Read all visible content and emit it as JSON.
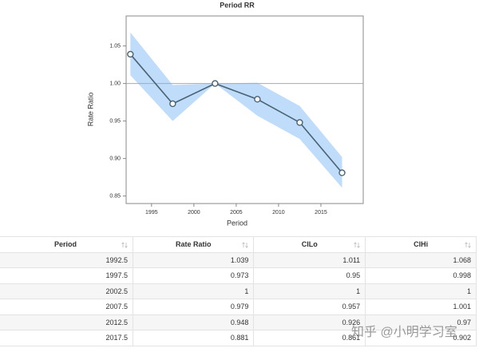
{
  "chart_data": {
    "type": "line",
    "title": "Period RR",
    "x_label": "Period",
    "y_label": "Rate Ratio",
    "x": [
      1992.5,
      1997.5,
      2002.5,
      2007.5,
      2012.5,
      2017.5
    ],
    "series": [
      {
        "name": "Rate Ratio",
        "color": "#4a6272",
        "values": [
          1.039,
          0.973,
          1,
          0.979,
          0.948,
          0.881
        ]
      }
    ],
    "band": {
      "color": "#bfdcfa",
      "lower": [
        1.011,
        0.95,
        1,
        0.957,
        0.926,
        0.861
      ],
      "upper": [
        1.068,
        0.998,
        1,
        1.001,
        0.97,
        0.902
      ]
    },
    "reference_line": 1,
    "xlim": [
      1992,
      2020
    ],
    "xticks": [
      1995,
      2000,
      2005,
      2010,
      2015
    ],
    "ylim": [
      0.84,
      1.09
    ],
    "yticks": [
      {
        "value": 0.85,
        "label": "0.85"
      },
      {
        "value": 0.9,
        "label": "0.90"
      },
      {
        "value": 0.95,
        "label": "0.95"
      },
      {
        "value": 1,
        "label": "1.00"
      },
      {
        "value": 1.05,
        "label": "1.05"
      }
    ],
    "grid": false
  },
  "table": {
    "columns": [
      "Period",
      "Rate Ratio",
      "CILo",
      "CIHi"
    ],
    "rows": [
      [
        1992.5,
        1.039,
        1.011,
        1.068
      ],
      [
        1997.5,
        0.973,
        0.95,
        0.998
      ],
      [
        2002.5,
        1,
        1,
        1
      ],
      [
        2007.5,
        0.979,
        0.957,
        1.001
      ],
      [
        2012.5,
        0.948,
        0.926,
        0.97
      ],
      [
        2017.5,
        0.881,
        0.861,
        0.902
      ]
    ]
  },
  "watermark": "知乎 @小明学习室"
}
